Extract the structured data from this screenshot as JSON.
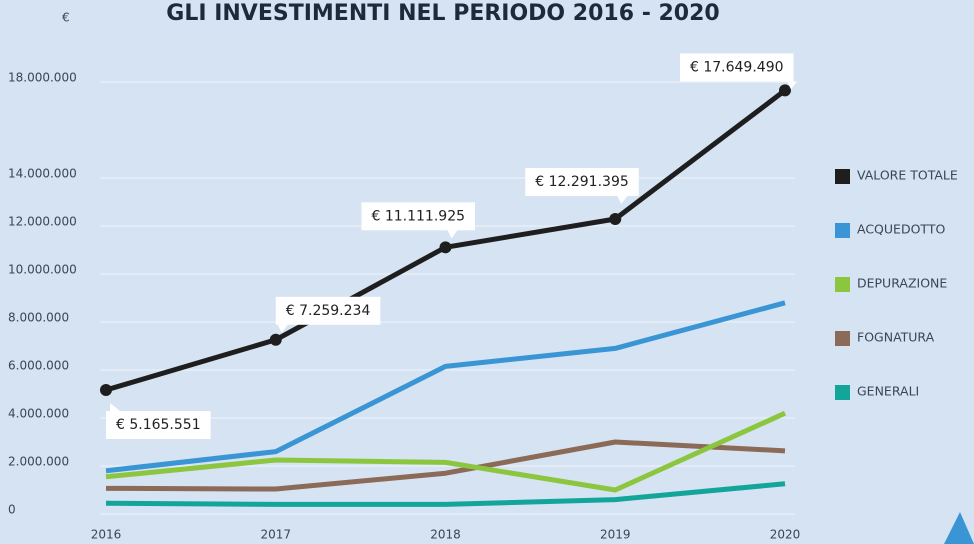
{
  "chart_data": {
    "type": "line",
    "title": "GLI INVESTIMENTI NEL PERIODO 2016 - 2020",
    "y_axis_label": "€",
    "categories": [
      "2016",
      "2017",
      "2018",
      "2019",
      "2020"
    ],
    "series": [
      {
        "name": "VALORE TOTALE",
        "color": "#1e1e1e",
        "values": [
          5165551,
          7259234,
          11111925,
          12291395,
          17649490
        ],
        "value_labels": [
          "€ 5.165.551",
          "€ 7.259.234",
          "€ 11.111.925",
          "€ 12.291.395",
          "€ 17.649.490"
        ]
      },
      {
        "name": "ACQUEDOTTO",
        "color": "#3a95d4",
        "values": [
          1800000,
          2600000,
          6150000,
          6900000,
          8800000
        ]
      },
      {
        "name": "DEPURAZIONE",
        "color": "#8cc63f",
        "values": [
          1550000,
          2250000,
          2150000,
          1000000,
          4200000
        ]
      },
      {
        "name": "FOGNATURA",
        "color": "#8c6a58",
        "values": [
          1070000,
          1040000,
          1700000,
          3000000,
          2630000
        ]
      },
      {
        "name": "GENERALI",
        "color": "#13a59a",
        "values": [
          450000,
          400000,
          400000,
          600000,
          1260000
        ]
      }
    ],
    "ylim": [
      0,
      18000000
    ],
    "yticks": [
      0,
      {
        "value": 2000000,
        "label": "2.000.000"
      },
      {
        "value": 4000000,
        "label": "4.000.000"
      },
      {
        "value": 6000000,
        "label": "6.000.000"
      },
      {
        "value": 8000000,
        "label": "8.000.000"
      },
      {
        "value": 10000000,
        "label": "10.000.000"
      },
      {
        "value": 12000000,
        "label": "12.000.000"
      },
      {
        "value": 14000000,
        "label": "14.000.000"
      },
      {
        "value": 18000000,
        "label": "18.000.000"
      }
    ],
    "grid": true,
    "legend": "right"
  }
}
